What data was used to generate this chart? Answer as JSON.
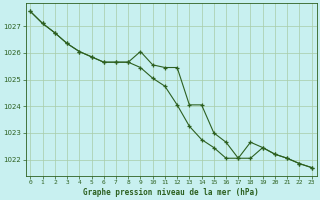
{
  "title": "Graphe pression niveau de la mer (hPa)",
  "bg_color": "#c8f0f0",
  "grid_color": "#a8cca8",
  "line_color": "#2d6020",
  "ylim": [
    1021.4,
    1027.85
  ],
  "yticks": [
    1022,
    1023,
    1024,
    1025,
    1026,
    1027
  ],
  "xlim": [
    -0.4,
    23.4
  ],
  "xticks": [
    0,
    1,
    2,
    3,
    4,
    5,
    6,
    7,
    8,
    9,
    10,
    11,
    12,
    13,
    14,
    15,
    16,
    17,
    18,
    19,
    20,
    21,
    22,
    23
  ],
  "series1_x": [
    0,
    1,
    2,
    3,
    4,
    5,
    6,
    7,
    8,
    9,
    10,
    11,
    12,
    13,
    14,
    15,
    16,
    17,
    18,
    19,
    20,
    21,
    22,
    23
  ],
  "series1_y": [
    1027.55,
    1027.1,
    1026.75,
    1026.35,
    1026.05,
    1025.85,
    1025.65,
    1025.65,
    1025.65,
    1026.05,
    1025.55,
    1025.45,
    1025.45,
    1024.05,
    1024.05,
    1023.0,
    1022.65,
    1022.05,
    1022.05,
    1022.45,
    1022.2,
    1022.05,
    1021.85,
    1021.7
  ],
  "series2_x": [
    0,
    1,
    2,
    3,
    4,
    5,
    6,
    7,
    8,
    9,
    10,
    11,
    12,
    13,
    14,
    15,
    16,
    17,
    18,
    19,
    20,
    21,
    22,
    23
  ],
  "series2_y": [
    1027.55,
    1027.1,
    1026.75,
    1026.35,
    1026.05,
    1025.85,
    1025.65,
    1025.65,
    1025.65,
    1025.45,
    1025.05,
    1024.75,
    1024.05,
    1023.25,
    1022.75,
    1022.45,
    1022.05,
    1022.05,
    1022.65,
    1022.45,
    1022.2,
    1022.05,
    1021.85,
    1021.7
  ]
}
